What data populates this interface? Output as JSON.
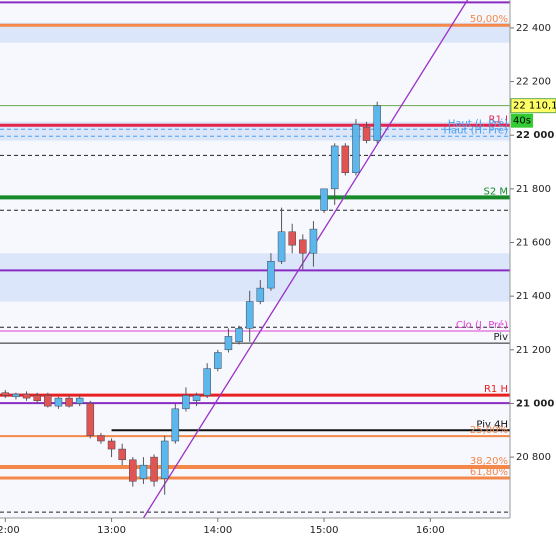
{
  "chart_data": {
    "type": "candlestick",
    "x": [
      "12:00",
      "12:06",
      "12:12",
      "12:18",
      "12:24",
      "12:30",
      "12:36",
      "12:42",
      "12:48",
      "12:54",
      "13:00",
      "13:06",
      "13:12",
      "13:18",
      "13:24",
      "13:30",
      "13:36",
      "13:42",
      "13:48",
      "13:54",
      "14:00",
      "14:06",
      "14:12",
      "14:18",
      "14:24",
      "14:30",
      "14:36",
      "14:42",
      "14:48",
      "14:54",
      "15:00",
      "15:06",
      "15:12",
      "15:18",
      "15:24",
      "15:30"
    ],
    "open": [
      21040,
      21025,
      21035,
      21030,
      21030,
      20990,
      21020,
      21000,
      21000,
      20880,
      20860,
      20830,
      20790,
      20720,
      20800,
      20720,
      20860,
      20980,
      21010,
      21030,
      21130,
      21200,
      21230,
      21280,
      21380,
      21430,
      21530,
      21640,
      21610,
      21560,
      21720,
      21800,
      21960,
      21860,
      22030,
      21980
    ],
    "high": [
      21050,
      21040,
      21045,
      21040,
      21040,
      21025,
      21030,
      21030,
      21010,
      20890,
      20870,
      20850,
      20800,
      20800,
      20810,
      20880,
      21000,
      21060,
      21040,
      21150,
      21200,
      21280,
      21290,
      21420,
      21460,
      21560,
      21730,
      21670,
      21630,
      21680,
      21800,
      21970,
      21970,
      22060,
      22050,
      22125
    ],
    "low": [
      21020,
      21015,
      21010,
      21000,
      20985,
      20980,
      20985,
      20990,
      20870,
      20850,
      20800,
      20770,
      20690,
      20700,
      20690,
      20660,
      20850,
      20970,
      20990,
      21020,
      21120,
      21190,
      21220,
      21230,
      21370,
      21420,
      21520,
      21560,
      21500,
      21510,
      21710,
      21740,
      21850,
      21850,
      21970,
      21970
    ],
    "close": [
      21030,
      21035,
      21020,
      21010,
      20990,
      21020,
      20990,
      21020,
      20880,
      20860,
      20830,
      20790,
      20710,
      20770,
      20710,
      20860,
      20980,
      21030,
      21030,
      21130,
      21190,
      21250,
      21280,
      21380,
      21430,
      21530,
      21640,
      21590,
      21560,
      21650,
      21800,
      21960,
      21860,
      22040,
      21980,
      22110.1
    ],
    "up_color": "#5cb8ec",
    "down_color": "#e05454",
    "last_label": "22 110,1",
    "countdown": "40s",
    "xlim": [
      "11:57",
      "16:45"
    ],
    "xticks": [
      "12:00",
      "13:00",
      "14:00",
      "15:00",
      "16:00"
    ],
    "ylim": [
      20573,
      22504
    ],
    "yticks": [
      {
        "value": 20800,
        "label": "20 800"
      },
      {
        "value": 21000,
        "label": "21 000"
      },
      {
        "value": 21200,
        "label": "21 200"
      },
      {
        "value": 21400,
        "label": "21 400"
      },
      {
        "value": 21600,
        "label": "21 600"
      },
      {
        "value": 21800,
        "label": "21 800"
      },
      {
        "value": 22000,
        "label": "22 000"
      },
      {
        "value": 22200,
        "label": "22 200"
      },
      {
        "value": 22400,
        "label": "22 400"
      }
    ],
    "bold_ticks": [
      21000,
      22000
    ],
    "bands": [
      {
        "low": 22345,
        "high": 22420
      },
      {
        "low": 21980,
        "high": 22050
      },
      {
        "low": 21380,
        "high": 21560
      }
    ],
    "band_color": "#dbe6fb",
    "levels": [
      {
        "value": 22495,
        "color": "#8a2bc2",
        "width": 2
      },
      {
        "name": "50,00%",
        "value": 22410,
        "color": "#f4884a",
        "width": 3
      },
      {
        "value": 22110.1,
        "color": "#6aa84f",
        "width": 1
      },
      {
        "name": "R1 J",
        "value": 22037,
        "color": "#e8234a",
        "width": 3
      },
      {
        "name": "Haut (J. Pré)",
        "value": 22022,
        "color": "#4a9ff0",
        "width": 1,
        "dash": true
      },
      {
        "name": "Haut (H. Pré)",
        "value": 21996,
        "color": "#4a9ff0",
        "width": 1,
        "dash": true
      },
      {
        "value": 21925,
        "color": "#222",
        "width": 1,
        "dash": true
      },
      {
        "name": "S2 M",
        "value": 21768,
        "color": "#178a2a",
        "width": 4
      },
      {
        "value": 21720,
        "color": "#222",
        "width": 1,
        "dash": true
      },
      {
        "value": 21496,
        "color": "#8a2bc2",
        "width": 2
      },
      {
        "value": 21284,
        "color": "#222",
        "width": 1,
        "dash": true
      },
      {
        "name": "Clo (J. Pré)",
        "value": 21270,
        "color": "#e040d0",
        "width": 1
      },
      {
        "name": "Piv",
        "value": 21225,
        "color": "#222",
        "width": 1
      },
      {
        "name": "R1 H",
        "value": 21031,
        "color": "#e82020",
        "width": 3
      },
      {
        "value": 21001,
        "color": "#8a2bc2",
        "width": 2
      },
      {
        "name": "Piv 4H",
        "value": 20900,
        "color": "#111",
        "width": 2,
        "start": "13:00"
      },
      {
        "name": "25,00%",
        "value": 20878,
        "color": "#f4884a",
        "width": 2
      },
      {
        "name": "38,20%",
        "value": 20763,
        "color": "#f4884a",
        "width": 4
      },
      {
        "name": "61,80%",
        "value": 20722,
        "color": "#f4884a",
        "width": 3
      },
      {
        "value": 20595,
        "color": "#222",
        "width": 1,
        "dash": true
      }
    ],
    "trendline": {
      "x": [
        "13:18",
        "16:21"
      ],
      "y": [
        20573,
        22504
      ],
      "color": "#9b30c8"
    }
  }
}
